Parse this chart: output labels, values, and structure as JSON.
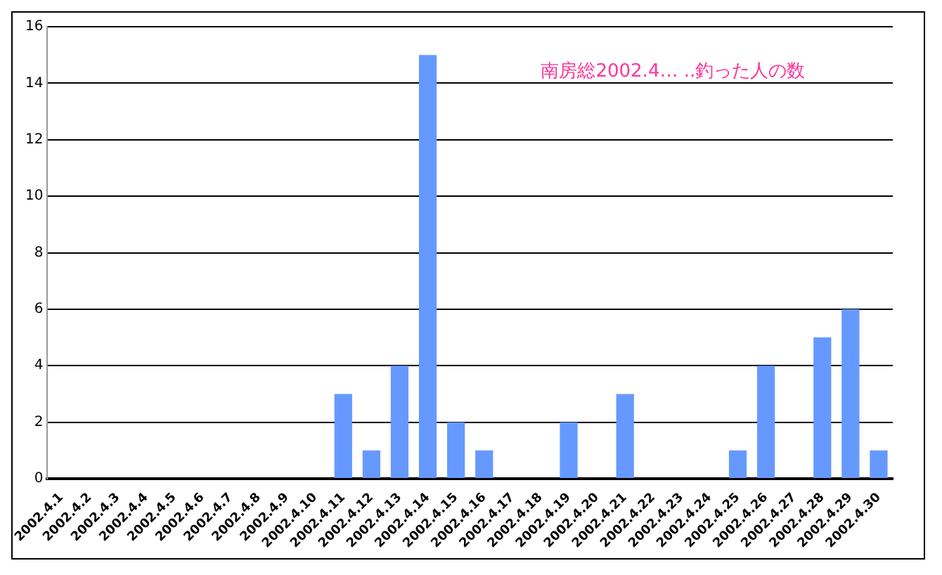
{
  "chart_data": {
    "type": "bar",
    "title": "南房総2002.4… ..釣った人の数",
    "categories": [
      "2002.4.1",
      "2002.4.2",
      "2002.4.3",
      "2002.4.4",
      "2002.4.5",
      "2002.4.6",
      "2002.4.7",
      "2002.4.8",
      "2002.4.9",
      "2002.4.10",
      "2002.4.11",
      "2002.4.12",
      "2002.4.13",
      "2002.4.14",
      "2002.4.15",
      "2002.4.16",
      "2002.4.17",
      "2002.4.18",
      "2002.4.19",
      "2002.4.20",
      "2002.4.21",
      "2002.4.22",
      "2002.4.23",
      "2002.4.24",
      "2002.4.25",
      "2002.4.26",
      "2002.4.27",
      "2002.4.28",
      "2002.4.29",
      "2002.4.30"
    ],
    "values": [
      0,
      0,
      0,
      0,
      0,
      0,
      0,
      0,
      0,
      0,
      3,
      1,
      4,
      15,
      2,
      1,
      0,
      0,
      2,
      0,
      3,
      0,
      0,
      0,
      1,
      4,
      0,
      5,
      6,
      1
    ],
    "color": "#6699ff",
    "ylim": [
      0,
      16
    ],
    "yticks": [
      0,
      2,
      4,
      6,
      8,
      10,
      12,
      14,
      16
    ],
    "grid": "y"
  }
}
